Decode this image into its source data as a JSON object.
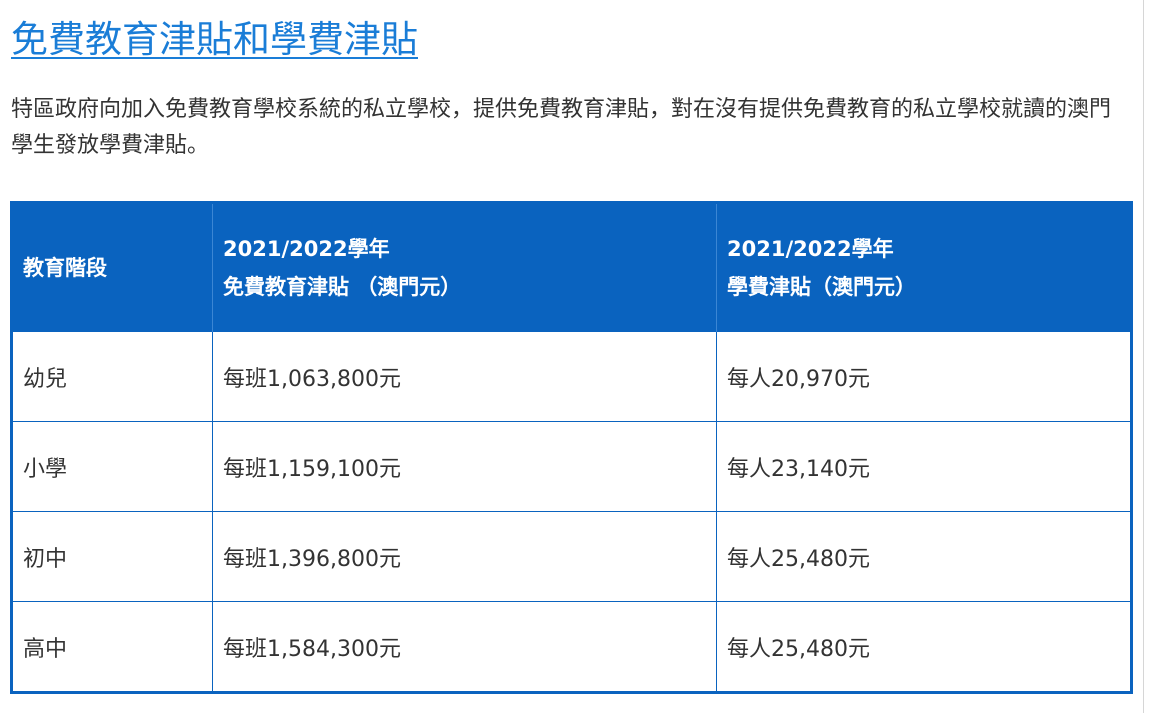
{
  "article": {
    "title": "免費教育津貼和學費津貼",
    "intro": "特區政府向加入免費教育學校系統的私立學校，提供免費教育津貼，對在沒有提供免費教育的私立學校就讀的澳門學生發放學費津貼。"
  },
  "table": {
    "headers": {
      "stage": "教育階段",
      "free_ed_year": "2021/2022學年",
      "free_ed_title": "免費教育津貼 （澳門元）",
      "tuition_year": "2021/2022學年",
      "tuition_title": "學費津貼（澳門元）"
    },
    "rows": [
      {
        "stage": "幼兒",
        "free_ed": "每班1,063,800元",
        "tuition": "每人20,970元"
      },
      {
        "stage": "小學",
        "free_ed": "每班1,159,100元",
        "tuition": "每人23,140元"
      },
      {
        "stage": "初中",
        "free_ed": "每班1,396,800元",
        "tuition": "每人25,480元"
      },
      {
        "stage": "高中",
        "free_ed": "每班1,584,300元",
        "tuition": "每人25,480元"
      }
    ]
  },
  "colors": {
    "link": "#1a7dd7",
    "table_header_bg": "#0a63bf",
    "table_border": "#0a63bf",
    "body_text": "#333333"
  }
}
